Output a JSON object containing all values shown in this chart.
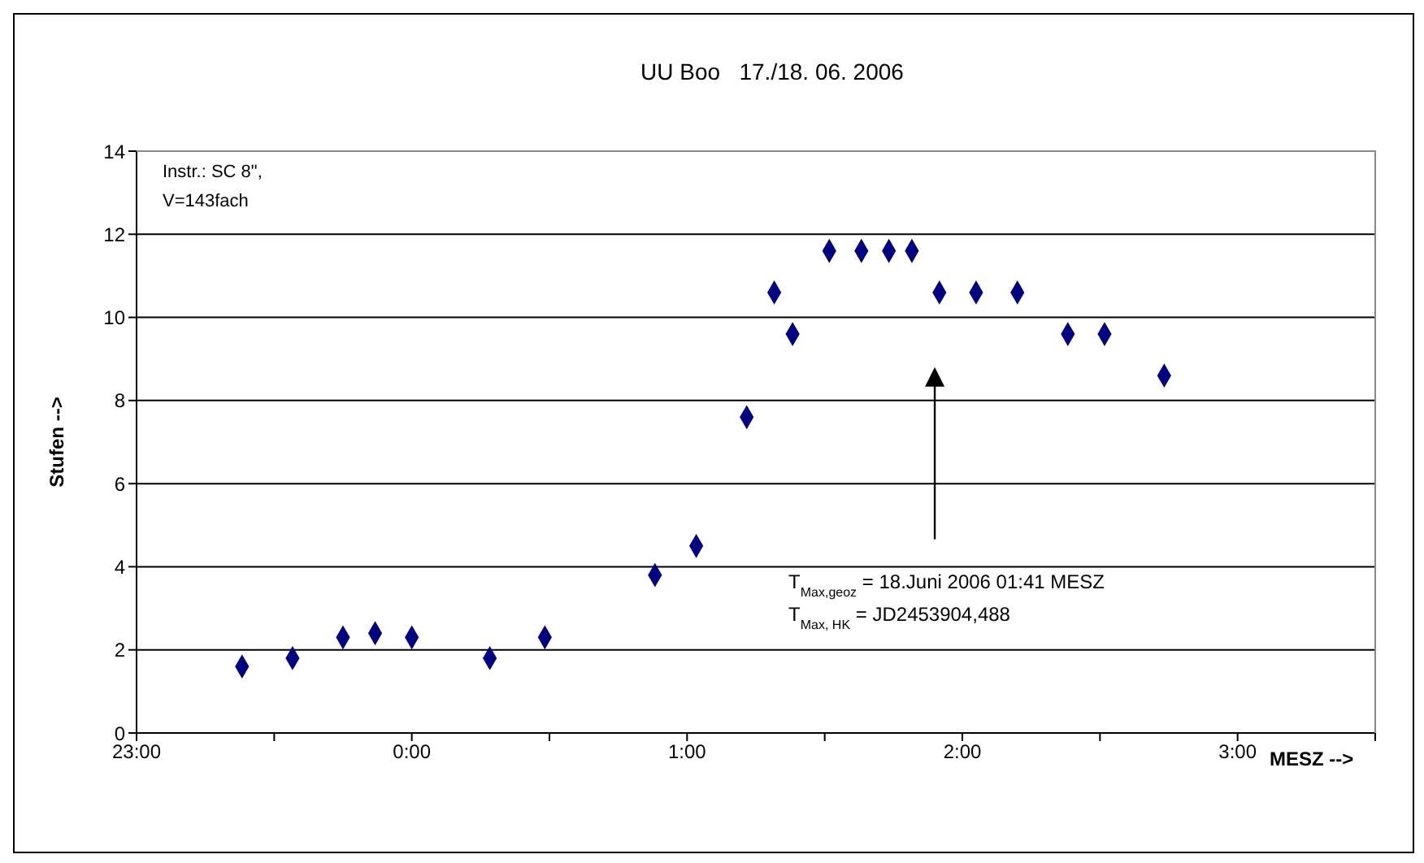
{
  "chart_data": {
    "type": "scatter",
    "title": "UU Boo   17./18. 06. 2006",
    "xlabel": "MESZ -->",
    "ylabel": "Stufen -->",
    "x": [
      "2006-06-17T23:23",
      "2006-06-17T23:34",
      "2006-06-17T23:45",
      "2006-06-17T23:52",
      "2006-06-18T00:00",
      "2006-06-18T00:17",
      "2006-06-18T00:29",
      "2006-06-18T00:53",
      "2006-06-18T01:02",
      "2006-06-18T01:13",
      "2006-06-18T01:19",
      "2006-06-18T01:23",
      "2006-06-18T01:31",
      "2006-06-18T01:38",
      "2006-06-18T01:44",
      "2006-06-18T01:49",
      "2006-06-18T01:55",
      "2006-06-18T02:03",
      "2006-06-18T02:12",
      "2006-06-18T02:23",
      "2006-06-18T02:31",
      "2006-06-18T02:44"
    ],
    "series": [
      {
        "color": "#000080",
        "values": [
          1.6,
          1.8,
          2.3,
          2.4,
          2.3,
          1.8,
          2.3,
          3.8,
          4.5,
          7.6,
          10.6,
          9.6,
          11.6,
          11.6,
          11.6,
          11.6,
          10.6,
          10.6,
          10.6,
          9.6,
          9.6,
          8.6
        ]
      }
    ],
    "xlim": [
      "2006-06-17T23:00",
      "2006-06-18T03:30"
    ],
    "xticks": [
      {
        "value": "2006-06-17T23:00",
        "label": "23:00"
      },
      {
        "value": "2006-06-17T23:30",
        "label": null
      },
      {
        "value": "2006-06-18T00:00",
        "label": "0:00"
      },
      {
        "value": "2006-06-18T00:30",
        "label": null
      },
      {
        "value": "2006-06-18T01:00",
        "label": "1:00"
      },
      {
        "value": "2006-06-18T01:30",
        "label": null
      },
      {
        "value": "2006-06-18T02:00",
        "label": "2:00"
      },
      {
        "value": "2006-06-18T02:30",
        "label": null
      },
      {
        "value": "2006-06-18T03:00",
        "label": "3:00"
      },
      {
        "value": "2006-06-18T03:30",
        "label": null
      }
    ],
    "ylim": [
      0,
      14
    ],
    "yticks": [
      0,
      2,
      4,
      6,
      8,
      10,
      12,
      14
    ],
    "grid": "y",
    "marker": "diamond",
    "annotations": [
      "Instr.: SC 8\",",
      "V=143fach",
      "T$_{Max,geoz}$ = 18.Juni 2006 01:41 MESZ",
      "T$_{Max, HK}$ = JD2453904,488"
    ]
  }
}
